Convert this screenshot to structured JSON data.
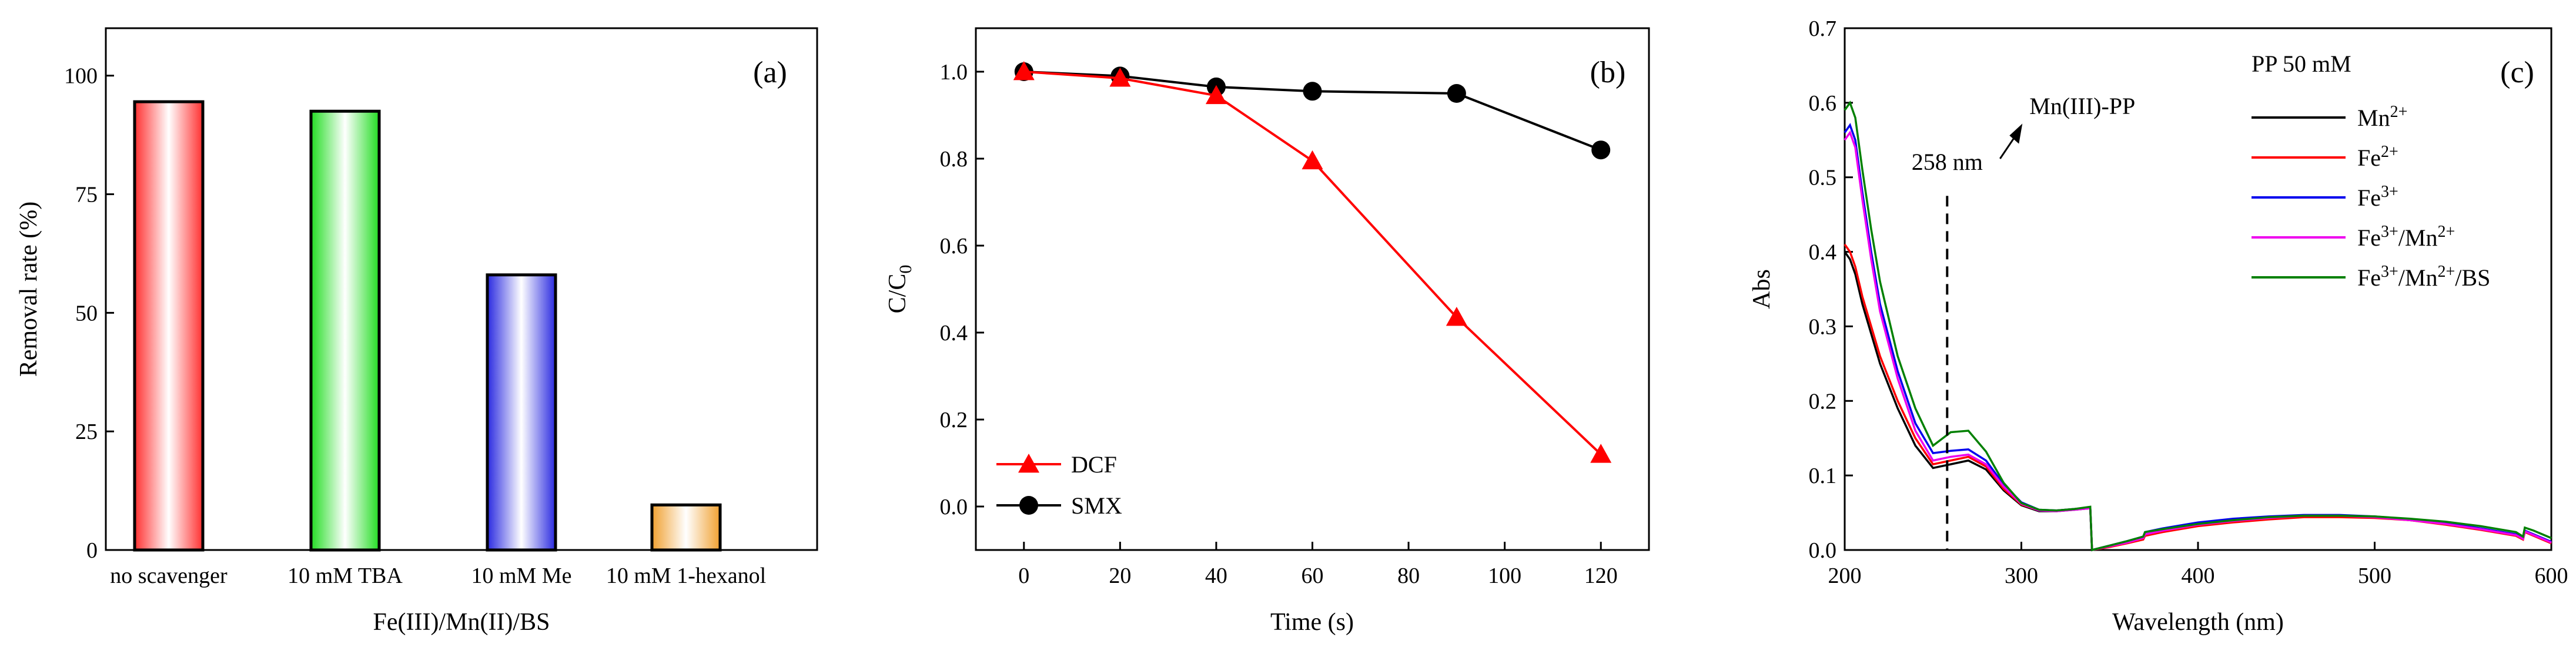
{
  "chart_data": [
    {
      "panel": "(a)",
      "type": "bar",
      "xlabel": "Fe(III)/Mn(II)/BS",
      "ylabel": "Removal rate (%)",
      "ylim": [
        0,
        110
      ],
      "yticks": [
        0,
        25,
        50,
        75,
        100
      ],
      "categories": [
        "no scavenger",
        "10 mM TBA",
        "10 mM Me",
        "10 mM 1-hexanol"
      ],
      "values": [
        94.5,
        92.5,
        58.0,
        9.5
      ],
      "bar_colors": [
        "#ff3030",
        "#22dd22",
        "#2a2ae0",
        "#f0a030"
      ]
    },
    {
      "panel": "(b)",
      "type": "line",
      "xlabel": "Time (s)",
      "ylabel_main": "C/C",
      "ylabel_sub": "0",
      "xlim": [
        -10,
        130
      ],
      "ylim": [
        -0.1,
        1.1
      ],
      "xticks": [
        0,
        20,
        40,
        60,
        80,
        100,
        120
      ],
      "yticks": [
        "0.0",
        "0.2",
        "0.4",
        "0.6",
        "0.8",
        "1.0"
      ],
      "series": [
        {
          "name": "DCF",
          "color": "#ff0000",
          "marker": "triangle",
          "x": [
            0,
            20,
            40,
            60,
            90,
            120
          ],
          "y": [
            1.0,
            0.985,
            0.945,
            0.795,
            0.435,
            0.12
          ]
        },
        {
          "name": "SMX",
          "color": "#000000",
          "marker": "circle",
          "x": [
            0,
            20,
            40,
            60,
            90,
            120
          ],
          "y": [
            1.0,
            0.99,
            0.965,
            0.955,
            0.95,
            0.82
          ]
        }
      ]
    },
    {
      "panel": "(c)",
      "type": "line",
      "xlabel": "Wavelength (nm)",
      "ylabel": "Abs",
      "xlim": [
        200,
        600
      ],
      "ylim": [
        0,
        0.7
      ],
      "xticks": [
        200,
        300,
        400,
        500,
        600
      ],
      "yticks": [
        "0.0",
        "0.1",
        "0.2",
        "0.3",
        "0.4",
        "0.5",
        "0.6",
        "0.7"
      ],
      "legend_title": "PP 50 mM",
      "annotation_arrow": "Mn(III)-PP",
      "annotation_line": "258 nm",
      "marker_x": 258,
      "series": [
        {
          "name_base": "Mn",
          "sup": "2+",
          "color": "#000000",
          "x": [
            200,
            203,
            206,
            210,
            215,
            220,
            230,
            240,
            250,
            260,
            270,
            280,
            290,
            300,
            310,
            320,
            330,
            339,
            340,
            350,
            360,
            369,
            370,
            380,
            400,
            420,
            440,
            460,
            480,
            500,
            520,
            540,
            560,
            580,
            584,
            585,
            590,
            600
          ],
          "y": [
            0.4,
            0.39,
            0.37,
            0.33,
            0.29,
            0.25,
            0.19,
            0.14,
            0.11,
            0.115,
            0.12,
            0.108,
            0.08,
            0.06,
            0.052,
            0.052,
            0.054,
            0.056,
            0.0,
            0.005,
            0.01,
            0.015,
            0.02,
            0.025,
            0.033,
            0.038,
            0.042,
            0.045,
            0.045,
            0.044,
            0.04,
            0.035,
            0.028,
            0.02,
            0.015,
            0.025,
            0.02,
            0.01
          ]
        },
        {
          "name_base": "Fe",
          "sup": "2+",
          "color": "#ff0000",
          "x": [
            200,
            203,
            206,
            210,
            215,
            220,
            230,
            240,
            250,
            260,
            270,
            280,
            290,
            300,
            310,
            320,
            330,
            339,
            340,
            350,
            360,
            369,
            370,
            380,
            400,
            420,
            440,
            460,
            480,
            500,
            520,
            540,
            560,
            580,
            584,
            585,
            590,
            600
          ],
          "y": [
            0.41,
            0.4,
            0.38,
            0.34,
            0.3,
            0.26,
            0.2,
            0.15,
            0.115,
            0.12,
            0.125,
            0.112,
            0.082,
            0.061,
            0.053,
            0.053,
            0.055,
            0.057,
            0.0,
            0.004,
            0.009,
            0.014,
            0.019,
            0.024,
            0.032,
            0.037,
            0.041,
            0.044,
            0.044,
            0.043,
            0.04,
            0.034,
            0.027,
            0.019,
            0.014,
            0.024,
            0.019,
            0.009
          ]
        },
        {
          "name_base": "Fe",
          "sup": "3+",
          "color": "#0000ee",
          "x": [
            200,
            203,
            206,
            210,
            215,
            220,
            230,
            240,
            250,
            260,
            270,
            280,
            290,
            300,
            310,
            320,
            330,
            339,
            340,
            350,
            360,
            369,
            370,
            380,
            400,
            420,
            440,
            460,
            480,
            500,
            520,
            540,
            560,
            580,
            584,
            585,
            590,
            600
          ],
          "y": [
            0.56,
            0.57,
            0.55,
            0.48,
            0.4,
            0.33,
            0.24,
            0.17,
            0.13,
            0.133,
            0.135,
            0.12,
            0.088,
            0.064,
            0.054,
            0.053,
            0.055,
            0.057,
            0.0,
            0.006,
            0.012,
            0.018,
            0.024,
            0.029,
            0.037,
            0.042,
            0.045,
            0.047,
            0.047,
            0.045,
            0.041,
            0.036,
            0.029,
            0.021,
            0.016,
            0.026,
            0.021,
            0.011
          ]
        },
        {
          "name_base": "Fe",
          "sup": "3+",
          "name_mid": "/Mn",
          "sup2": "2+",
          "color": "#ee00ee",
          "x": [
            200,
            203,
            206,
            210,
            215,
            220,
            230,
            240,
            250,
            260,
            270,
            280,
            290,
            300,
            310,
            320,
            330,
            339,
            340,
            350,
            360,
            369,
            370,
            380,
            400,
            420,
            440,
            460,
            480,
            500,
            520,
            540,
            560,
            580,
            584,
            585,
            590,
            600
          ],
          "y": [
            0.55,
            0.56,
            0.54,
            0.47,
            0.39,
            0.32,
            0.23,
            0.16,
            0.12,
            0.125,
            0.128,
            0.115,
            0.085,
            0.062,
            0.053,
            0.052,
            0.054,
            0.056,
            0.0,
            0.005,
            0.01,
            0.016,
            0.021,
            0.026,
            0.034,
            0.039,
            0.043,
            0.046,
            0.046,
            0.044,
            0.04,
            0.035,
            0.028,
            0.02,
            0.015,
            0.025,
            0.02,
            0.01
          ]
        },
        {
          "name_base": "Fe",
          "sup": "3+",
          "name_mid": "/Mn",
          "sup2": "2+",
          "name_tail": "/BS",
          "color": "#008000",
          "x": [
            200,
            203,
            206,
            210,
            215,
            220,
            230,
            240,
            250,
            260,
            270,
            280,
            290,
            300,
            310,
            320,
            330,
            339,
            340,
            350,
            360,
            369,
            370,
            380,
            400,
            420,
            440,
            460,
            480,
            500,
            520,
            540,
            560,
            580,
            584,
            585,
            590,
            600
          ],
          "y": [
            0.59,
            0.6,
            0.58,
            0.51,
            0.43,
            0.36,
            0.26,
            0.19,
            0.14,
            0.158,
            0.16,
            0.132,
            0.09,
            0.063,
            0.054,
            0.053,
            0.055,
            0.058,
            0.0,
            0.006,
            0.012,
            0.018,
            0.024,
            0.028,
            0.035,
            0.04,
            0.044,
            0.046,
            0.046,
            0.045,
            0.042,
            0.038,
            0.032,
            0.024,
            0.018,
            0.03,
            0.026,
            0.016
          ]
        }
      ]
    }
  ]
}
